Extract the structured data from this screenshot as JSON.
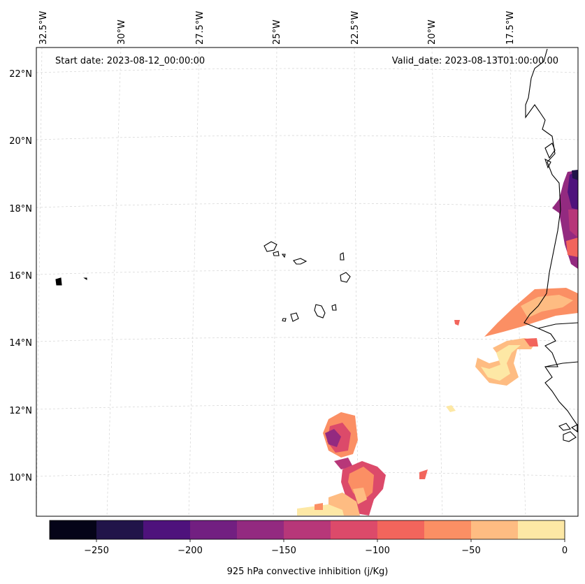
{
  "map": {
    "start_label": "Start date: 2023-08-12_00:00:00",
    "valid_label": "Valid_date: 2023-08-13T01:00:00.00",
    "lon_labels": [
      "32.5°W",
      "30°W",
      "27.5°W",
      "25°W",
      "22.5°W",
      "20°W",
      "17.5°W"
    ],
    "lat_labels": [
      "22°N",
      "20°N",
      "18°N",
      "16°N",
      "14°N",
      "12°N",
      "10°N"
    ],
    "gridline_color": "#d3d3d3",
    "coast_color": "#000000"
  },
  "colorbar": {
    "label": "925 hPa convective inhibition (j/Kg)",
    "ticks": [
      "−250",
      "−200",
      "−150",
      "−100",
      "−50",
      "0"
    ],
    "levels": [
      -275,
      -250,
      -225,
      -200,
      -175,
      -150,
      -125,
      -100,
      -75,
      -50,
      -25,
      0
    ],
    "colors": [
      "#050418",
      "#211449",
      "#4e127c",
      "#721f81",
      "#932a80",
      "#b73779",
      "#dc4a6a",
      "#f2655c",
      "#fb8f64",
      "#febc82",
      "#fde8a5"
    ]
  },
  "field": {
    "variable": "925 hPa convective inhibition",
    "units": "j/Kg"
  }
}
